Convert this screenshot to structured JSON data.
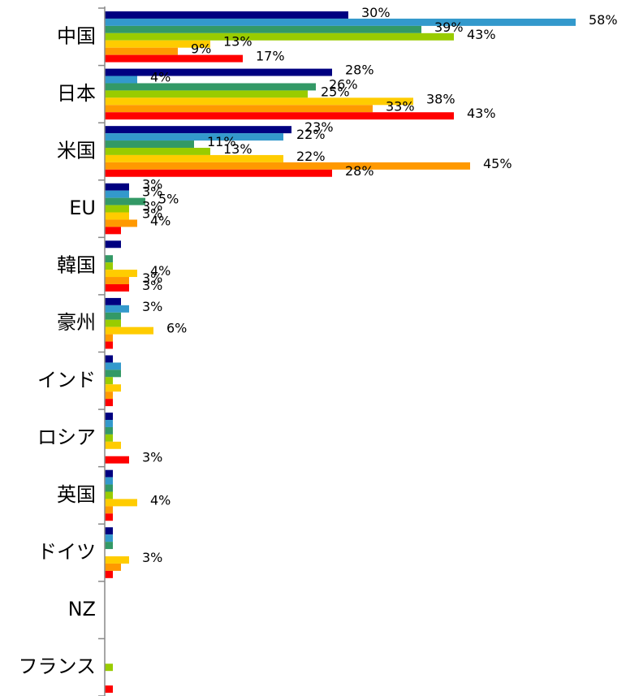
{
  "chart_data": {
    "type": "bar",
    "orientation": "horizontal",
    "categories": [
      "中国",
      "日本",
      "米国",
      "EU",
      "韓国",
      "豪州",
      "インド",
      "ロシア",
      "英国",
      "ドイツ",
      "NZ",
      "フランス"
    ],
    "xlim": [
      0,
      60
    ],
    "series": [
      {
        "color": "#000080",
        "values": [
          30,
          28,
          23,
          3,
          2,
          2,
          1,
          1,
          1,
          1,
          0,
          0
        ],
        "value_labels": [
          "30%",
          "28%",
          "23%",
          "3%",
          null,
          null,
          null,
          null,
          null,
          null,
          null,
          null
        ]
      },
      {
        "color": "#3399cc",
        "values": [
          58,
          4,
          22,
          3,
          0,
          3,
          2,
          1,
          1,
          1,
          0,
          0
        ],
        "value_labels": [
          "58%",
          "4%",
          "22%",
          "3%",
          null,
          "3%",
          null,
          null,
          null,
          null,
          null,
          null
        ]
      },
      {
        "color": "#339966",
        "values": [
          39,
          26,
          11,
          5,
          1,
          2,
          2,
          1,
          1,
          1,
          0,
          0
        ],
        "value_labels": [
          "39%",
          "26%",
          "11%",
          "5%",
          null,
          null,
          null,
          null,
          null,
          null,
          null,
          null
        ]
      },
      {
        "color": "#99cc00",
        "values": [
          43,
          25,
          13,
          3,
          1,
          2,
          1,
          1,
          1,
          0,
          0,
          1
        ],
        "value_labels": [
          "43%",
          "25%",
          "13%",
          "3%",
          null,
          null,
          null,
          null,
          null,
          null,
          null,
          null
        ]
      },
      {
        "color": "#ffcc00",
        "values": [
          13,
          38,
          22,
          3,
          4,
          6,
          2,
          2,
          4,
          3,
          0,
          0
        ],
        "value_labels": [
          "13%",
          "38%",
          "22%",
          "3%",
          "4%",
          "6%",
          null,
          null,
          "4%",
          "3%",
          null,
          null
        ]
      },
      {
        "color": "#ff9900",
        "values": [
          9,
          33,
          45,
          4,
          3,
          1,
          1,
          0,
          1,
          2,
          0,
          0
        ],
        "value_labels": [
          "9%",
          "33%",
          "45%",
          "4%",
          "3%",
          null,
          null,
          null,
          null,
          null,
          null,
          null
        ]
      },
      {
        "color": "#ff0000",
        "values": [
          17,
          43,
          28,
          2,
          3,
          1,
          1,
          3,
          1,
          1,
          0,
          1
        ],
        "value_labels": [
          "17%",
          "43%",
          "28%",
          null,
          "3%",
          null,
          null,
          "3%",
          null,
          null,
          null,
          null
        ]
      }
    ]
  }
}
